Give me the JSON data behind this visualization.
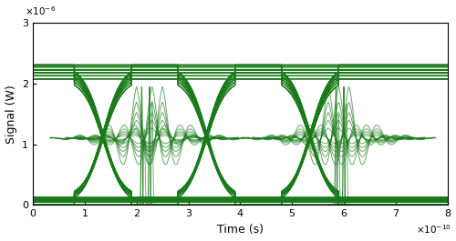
{
  "xlabel": "Time (s)",
  "ylabel": "Signal (W)",
  "xlim": [
    0,
    8e-10
  ],
  "ylim": [
    0,
    3e-06
  ],
  "xticks": [
    0,
    1e-10,
    2e-10,
    3e-10,
    4e-10,
    5e-10,
    6e-10,
    7e-10,
    8e-10
  ],
  "yticks": [
    0,
    1e-06,
    2e-06,
    3e-06
  ],
  "xtick_labels": [
    "0",
    "1",
    "2",
    "3",
    "4",
    "5",
    "6",
    "7",
    "8"
  ],
  "ytick_labels": [
    "0",
    "1",
    "2",
    "3"
  ],
  "line_color": "#1a7a1a",
  "line_alpha": 0.85,
  "line_width": 0.85,
  "background_color": "#ffffff",
  "high": 2.28e-06,
  "low": 0.0,
  "bit_period": 2e-10,
  "total_time": 8e-10
}
